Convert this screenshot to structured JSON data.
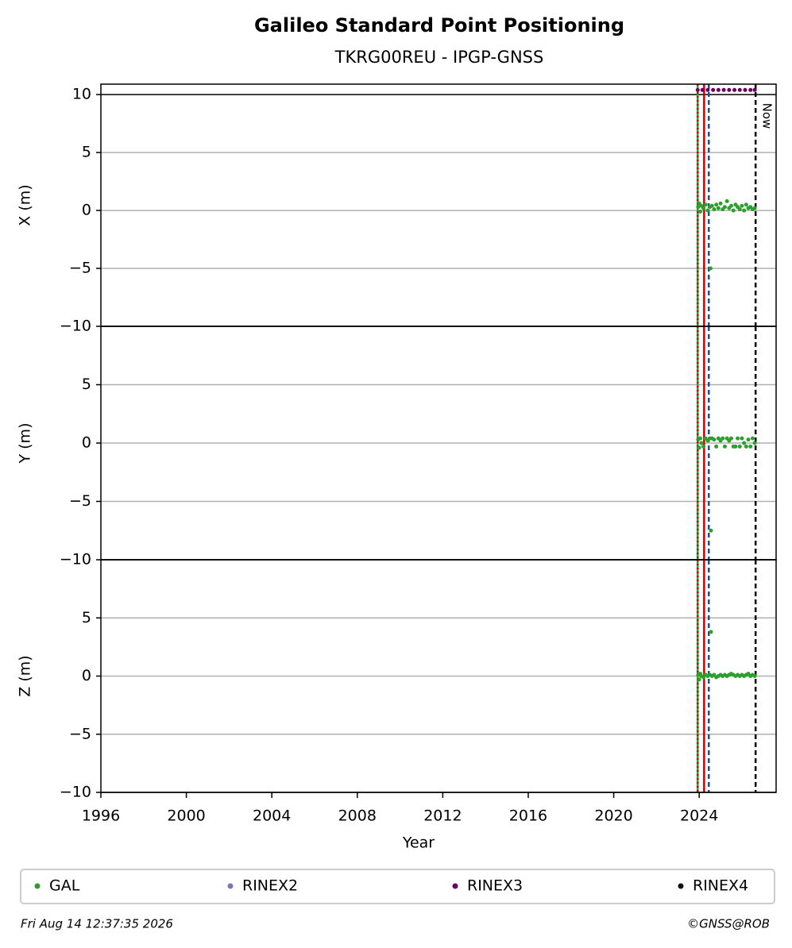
{
  "title": "Galileo Standard Point Positioning",
  "subtitle": "TKRG00REU - IPGP-GNSS",
  "legend": [
    {
      "name": "GAL",
      "color": "#2ca02c"
    },
    {
      "name": "RINEX2",
      "color": "#8073b8"
    },
    {
      "name": "RINEX3",
      "color": "#6a0062"
    },
    {
      "name": "RINEX4",
      "color": "#1a0618"
    }
  ],
  "vlines": [
    {
      "x": 2023.93,
      "color": "#2ca02c",
      "style": "solid"
    },
    {
      "x": 2023.93,
      "color": "#cc0000",
      "style": "dotted"
    },
    {
      "x": 2024.23,
      "color": "#d00000",
      "style": "solid"
    },
    {
      "x": 2024.45,
      "color": "#1f4e9b",
      "style": "dashed"
    },
    {
      "x": 2026.64,
      "color": "#000000",
      "style": "dashed",
      "label": "Now"
    }
  ],
  "footer_left": "Fri Aug 14 12:37:35 2026",
  "footer_right": "©GNSS@ROB",
  "chart_data": [
    {
      "type": "scatter",
      "ylabel": "X (m)",
      "xlim": [
        1996,
        2027.6
      ],
      "ylim": [
        -10,
        10.9
      ],
      "grid": true,
      "yticks": [
        {
          "value": -10,
          "label": "−10"
        },
        {
          "value": -5,
          "label": "−5"
        },
        0,
        5,
        10
      ],
      "series": [
        {
          "color": "#2ca02c",
          "x": [
            2023.95,
            2024.0,
            2024.05,
            2024.1,
            2024.2,
            2024.3,
            2024.4,
            2024.5,
            2024.53,
            2024.6,
            2024.7,
            2024.8,
            2024.9,
            2025.0,
            2025.1,
            2025.2,
            2025.3,
            2025.4,
            2025.5,
            2025.6,
            2025.7,
            2025.8,
            2025.9,
            2026.0,
            2026.1,
            2026.2,
            2026.3,
            2026.4,
            2026.5,
            2026.6
          ],
          "values": [
            0.3,
            0.6,
            -0.1,
            0.4,
            0.2,
            0.5,
            0,
            0.3,
            -5,
            0.4,
            0.1,
            0.5,
            0.2,
            0.6,
            0.1,
            0.3,
            0.8,
            0.2,
            0.4,
            0,
            0.5,
            0.3,
            0.1,
            0.4,
            0,
            0.5,
            0.2,
            0.3,
            0.1,
            0.2
          ]
        },
        {
          "color": "#6a0062",
          "x": [
            2023.93,
            2024.15,
            2024.4,
            2024.65,
            2024.9,
            2025.15,
            2025.4,
            2025.65,
            2025.9,
            2026.15,
            2026.4,
            2026.6
          ],
          "values": [
            10.4,
            10.4,
            10.4,
            10.4,
            10.4,
            10.4,
            10.4,
            10.4,
            10.4,
            10.4,
            10.4,
            10.4
          ]
        }
      ]
    },
    {
      "type": "scatter",
      "ylabel": "Y (m)",
      "xlim": [
        1996,
        2027.6
      ],
      "ylim": [
        -10,
        10
      ],
      "grid": true,
      "yticks": [
        {
          "value": -10,
          "label": "−10"
        },
        {
          "value": -5,
          "label": "−5"
        },
        0,
        5
      ],
      "series": [
        {
          "color": "#2ca02c",
          "x": [
            2023.95,
            2024.0,
            2024.05,
            2024.1,
            2024.2,
            2024.3,
            2024.4,
            2024.5,
            2024.55,
            2024.6,
            2024.7,
            2024.8,
            2024.9,
            2025.0,
            2025.1,
            2025.2,
            2025.3,
            2025.4,
            2025.5,
            2025.6,
            2025.7,
            2025.8,
            2025.9,
            2026.0,
            2026.1,
            2026.2,
            2026.3,
            2026.4,
            2026.5,
            2026.6
          ],
          "values": [
            0.3,
            -0.4,
            0.4,
            0,
            -0.3,
            0.4,
            0.2,
            0.4,
            -7.5,
            0.4,
            0.3,
            -0.3,
            0.4,
            0.2,
            0.4,
            -0.3,
            0.4,
            0.2,
            0.4,
            -0.3,
            -0.3,
            0.4,
            -0.3,
            0.4,
            0,
            -0.3,
            0.3,
            -0.3,
            0.4,
            0
          ]
        }
      ]
    },
    {
      "type": "scatter",
      "ylabel": "Z (m)",
      "xlabel": "Year",
      "xlim": [
        1996,
        2027.6
      ],
      "ylim": [
        -10,
        10
      ],
      "grid": true,
      "xticks": [
        1996,
        2000,
        2004,
        2008,
        2012,
        2016,
        2020,
        2024
      ],
      "yticks": [
        {
          "value": -10,
          "label": "−10"
        },
        {
          "value": -5,
          "label": "−5"
        },
        0,
        5
      ],
      "series": [
        {
          "color": "#2ca02c",
          "x": [
            2023.95,
            2024.0,
            2024.05,
            2024.1,
            2024.2,
            2024.3,
            2024.4,
            2024.5,
            2024.55,
            2024.6,
            2024.7,
            2024.8,
            2024.9,
            2025.0,
            2025.1,
            2025.2,
            2025.3,
            2025.4,
            2025.5,
            2025.6,
            2025.7,
            2025.8,
            2025.9,
            2026.0,
            2026.1,
            2026.2,
            2026.3,
            2026.4,
            2026.5,
            2026.6
          ],
          "values": [
            0.1,
            -0.3,
            0.2,
            0,
            -0.1,
            0.1,
            0,
            0.1,
            3.8,
            0,
            0.1,
            -0.1,
            0,
            0.1,
            0,
            0.1,
            0,
            0.1,
            0.2,
            0.1,
            0,
            0.1,
            0,
            0.1,
            0,
            0.1,
            0.2,
            0,
            0.1,
            0
          ]
        }
      ]
    }
  ]
}
